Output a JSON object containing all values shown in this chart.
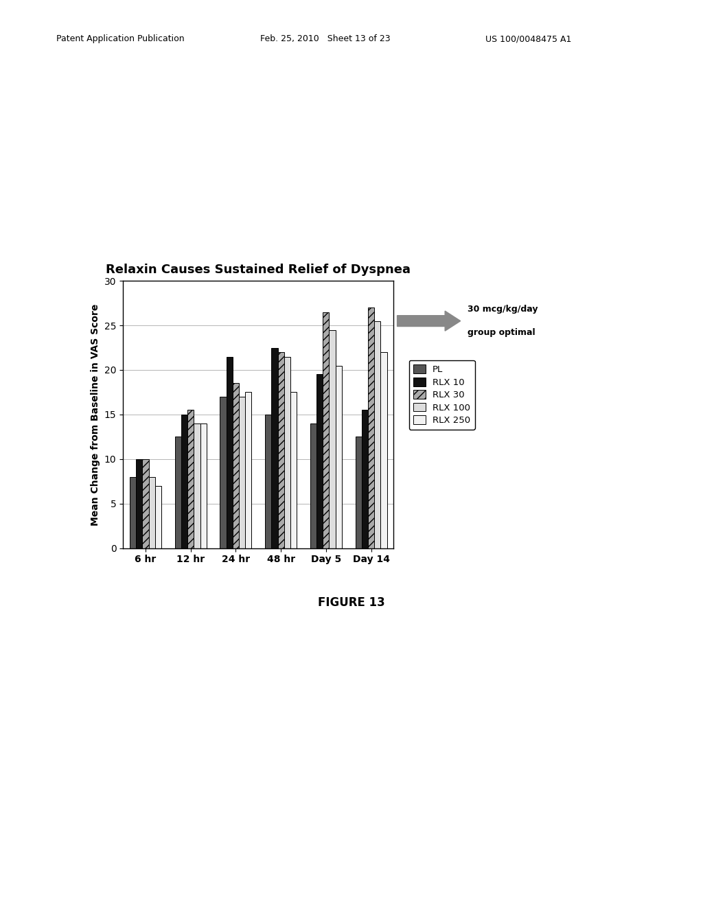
{
  "title": "Relaxin Causes Sustained Relief of Dyspnea",
  "ylabel": "Mean Change from Baseline in VAS Score",
  "categories": [
    "6 hr",
    "12 hr",
    "24 hr",
    "48 hr",
    "Day 5",
    "Day 14"
  ],
  "series": {
    "PL": [
      8,
      12.5,
      17,
      15,
      14,
      12.5
    ],
    "RLX 10": [
      10,
      15,
      21.5,
      22.5,
      19.5,
      15.5
    ],
    "RLX 30": [
      10,
      15.5,
      18.5,
      22,
      26.5,
      27
    ],
    "RLX 100": [
      8,
      14,
      17,
      21.5,
      24.5,
      25.5
    ],
    "RLX 250": [
      7,
      14,
      17.5,
      17.5,
      20.5,
      22
    ]
  },
  "colors": {
    "PL": "#555555",
    "RLX 10": "#111111",
    "RLX 30": "#aaaaaa",
    "RLX 100": "#dddddd",
    "RLX 250": "#f2f2f2"
  },
  "hatches": {
    "PL": "",
    "RLX 10": "",
    "RLX 30": "///",
    "RLX 100": "",
    "RLX 250": ""
  },
  "ylim": [
    0,
    30
  ],
  "yticks": [
    0,
    5,
    10,
    15,
    20,
    25,
    30
  ],
  "arrow_text_line1": "30 mcg/kg/day",
  "arrow_text_line2": "group optimal",
  "figure_caption": "FIGURE 13",
  "header_left": "Patent Application Publication",
  "header_mid": "Feb. 25, 2010   Sheet 13 of 23",
  "header_right": "US 100/0048475 A1",
  "background_color": "#ffffff",
  "title_fontsize": 13,
  "axis_fontsize": 10,
  "tick_fontsize": 10,
  "legend_fontsize": 9.5
}
